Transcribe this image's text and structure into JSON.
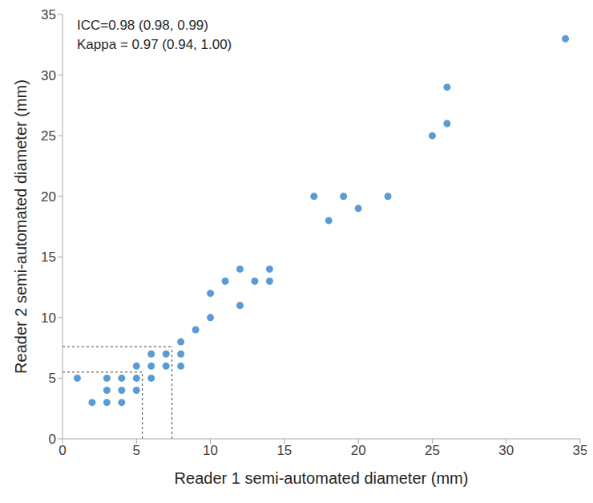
{
  "chart_data": {
    "type": "scatter",
    "x_label": "Reader 1 semi-automated diameter (mm)",
    "y_label": "Reader 2 semi-automated  diameter (mm)",
    "annotations": [
      "ICC=0.98 (0.98, 0.99)",
      "Kappa = 0.97 (0.94, 1.00)"
    ],
    "x": [
      1,
      2,
      3,
      3,
      3,
      4,
      4,
      4,
      5,
      5,
      5,
      6,
      6,
      6,
      7,
      7,
      8,
      8,
      8,
      9,
      10,
      10,
      11,
      12,
      12,
      13,
      14,
      14,
      17,
      18,
      19,
      20,
      22,
      25,
      26,
      26,
      34
    ],
    "values": [
      5,
      3,
      5,
      4,
      3,
      5,
      4,
      3,
      6,
      5,
      4,
      7,
      6,
      5,
      7,
      6,
      8,
      7,
      6,
      9,
      12,
      10,
      13,
      14,
      11,
      13,
      14,
      13,
      20,
      18,
      20,
      19,
      20,
      25,
      29,
      26,
      33
    ],
    "color": "#5b9bd5",
    "marker": "circle",
    "reference_lines": [
      {
        "x": 5.4,
        "y": 5.5
      },
      {
        "x": 7.4,
        "y": 7.6
      }
    ],
    "xlim": [
      0,
      35
    ],
    "ylim": [
      0,
      35
    ],
    "xticks": [
      0,
      5,
      10,
      15,
      20,
      25,
      30,
      35
    ],
    "yticks": [
      0,
      5,
      10,
      15,
      20,
      25,
      30,
      35
    ],
    "grid": false
  }
}
